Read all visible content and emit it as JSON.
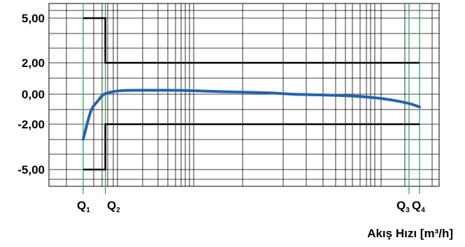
{
  "chart_data": {
    "type": "line",
    "title": "",
    "xlabel": "Akış Hızı [m³/h]",
    "ylabel": "",
    "y_tick_labels": [
      "5,00",
      "2,00",
      "0,00",
      "-2,00",
      "-5,00"
    ],
    "x_tick_labels": [
      {
        "base": "Q",
        "sub": "1"
      },
      {
        "base": "Q",
        "sub": "2"
      },
      {
        "base": "Q",
        "sub": "3"
      },
      {
        "base": "Q",
        "sub": "4"
      }
    ],
    "x_scale": "log",
    "flow_markers": {
      "Q1": 1,
      "Q2": 1.6,
      "Q3": 1000,
      "Q4": 1250
    },
    "ylim_labels": [
      "-5,00",
      "5,00"
    ],
    "limit_upper": {
      "segments": [
        {
          "x_from": "Q1",
          "x_to": "Q2",
          "y": 5.0
        },
        {
          "x_from": "Q2",
          "x_to": "Q4",
          "y": 2.0
        }
      ]
    },
    "limit_lower": {
      "segments": [
        {
          "x_from": "Q1",
          "x_to": "Q2",
          "y": -5.0
        },
        {
          "x_from": "Q2",
          "x_to": "Q4",
          "y": -2.0
        }
      ]
    },
    "error_curve": {
      "color": "#2563ae",
      "points": [
        [
          1.0,
          -3.0
        ],
        [
          1.1,
          -1.8
        ],
        [
          1.2,
          -0.9
        ],
        [
          1.35,
          -0.5
        ],
        [
          1.5,
          -0.05
        ],
        [
          1.7,
          0.1
        ],
        [
          2.0,
          0.2
        ],
        [
          2.5,
          0.25
        ],
        [
          4,
          0.25
        ],
        [
          8,
          0.25
        ],
        [
          20,
          0.15
        ],
        [
          50,
          0.1
        ],
        [
          80,
          0.0
        ],
        [
          150,
          -0.05
        ],
        [
          300,
          -0.1
        ],
        [
          600,
          -0.3
        ],
        [
          1000,
          -0.6
        ],
        [
          1250,
          -0.85
        ]
      ]
    },
    "grid": true,
    "colors": {
      "limits": "#000000",
      "curve": "#2563ae",
      "flow_lines": "#35b15a",
      "grid": "#000000"
    }
  }
}
